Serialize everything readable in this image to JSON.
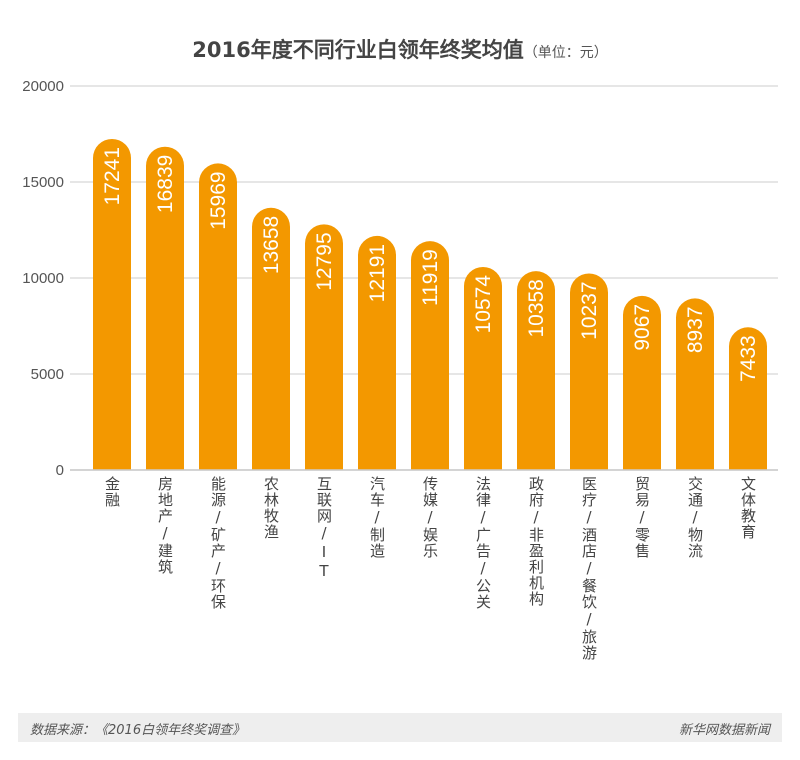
{
  "chart_data": {
    "type": "bar",
    "title": "2016年度不同行业白领年终奖均值",
    "unit": "（单位：元）",
    "categories": [
      "金融",
      "房地产/建筑",
      "能源/矿产/环保",
      "农林牧渔",
      "互联网/IT",
      "汽车/制造",
      "传媒/娱乐",
      "法律/广告/公关",
      "政府/非盈利机构",
      "医疗/酒店/餐饮/旅游",
      "贸易/零售",
      "交通/物流",
      "文体教育"
    ],
    "values": [
      17241,
      16839,
      15969,
      13658,
      12795,
      12191,
      11919,
      10574,
      10358,
      10237,
      9067,
      8937,
      7433
    ],
    "ylim": [
      0,
      20000
    ],
    "yticks": [
      0,
      5000,
      10000,
      15000,
      20000
    ],
    "grid": true,
    "bar_color": "#f39800",
    "xlabel": "",
    "ylabel": ""
  },
  "footer": {
    "source": "数据来源：《2016白领年终奖调查》",
    "brand": "新华网数据新闻"
  }
}
